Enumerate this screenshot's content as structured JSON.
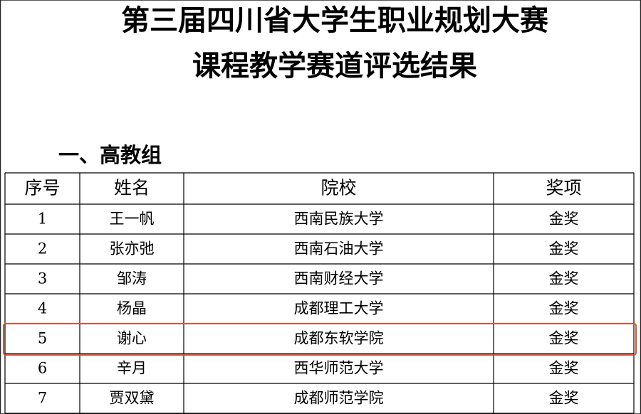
{
  "header": {
    "title_lines": [
      "第三届四川省大学生职业规划大赛",
      "课程教学赛道评选结果"
    ]
  },
  "section": {
    "heading": "一、高教组"
  },
  "table": {
    "columns": [
      "序号",
      "姓名",
      "院校",
      "奖项"
    ],
    "rows": [
      [
        1,
        "王一帆",
        "西南民族大学",
        "金奖"
      ],
      [
        2,
        "张亦弛",
        "西南石油大学",
        "金奖"
      ],
      [
        3,
        "邹涛",
        "西南财经大学",
        "金奖"
      ],
      [
        4,
        "杨晶",
        "成都理工大学",
        "金奖"
      ],
      [
        5,
        "谢心",
        "成都东软学院",
        "金奖"
      ],
      [
        6,
        "辛月",
        "西华师范大学",
        "金奖"
      ],
      [
        7,
        "贾双黛",
        "成都师范学院",
        "金奖"
      ]
    ]
  }
}
